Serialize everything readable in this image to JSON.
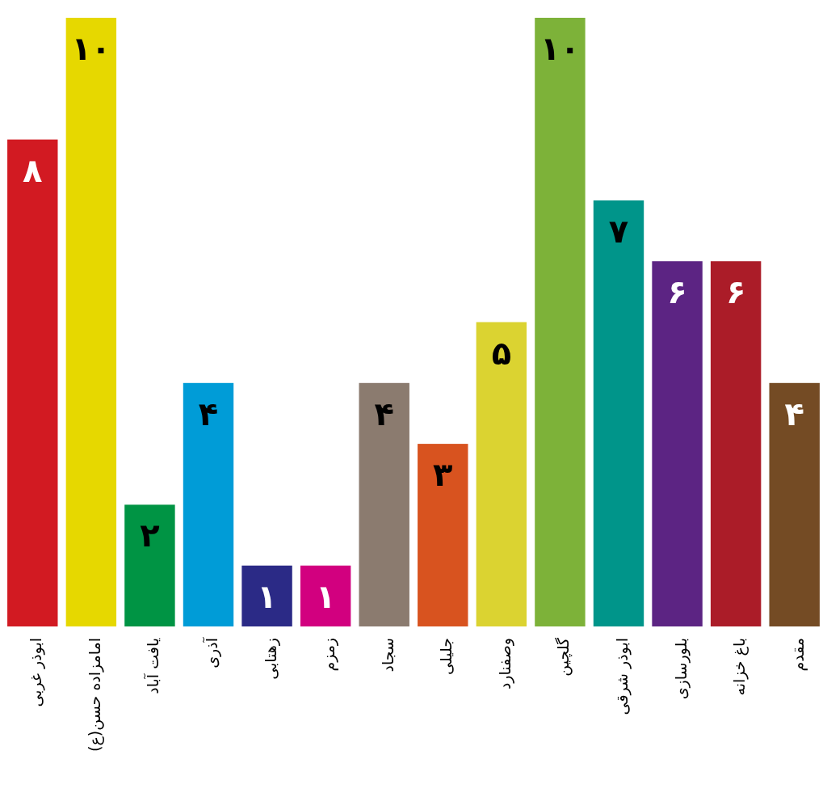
{
  "chart_data": {
    "type": "bar",
    "categories": [
      "ابوذر غربی",
      "امامزاده حسن(ع)",
      "یافت آباد",
      "آذری",
      "زهتابی",
      "زمزم",
      "سجاد",
      "جلیلی",
      "وصفنارد",
      "گلچین",
      "ابوذر شرقی",
      "بلورسازی",
      "باغ خزانه",
      "مقدم"
    ],
    "values": [
      8,
      10,
      2,
      4,
      1,
      1,
      4,
      3,
      5,
      10,
      7,
      6,
      6,
      4
    ],
    "colors": [
      "#d21a22",
      "#e6d800",
      "#009444",
      "#009cd7",
      "#2b2a86",
      "#d2007f",
      "#8b7b6f",
      "#d8531f",
      "#dbd331",
      "#7db239",
      "#00958a",
      "#5c2483",
      "#ab1c28",
      "#744b24"
    ],
    "value_labels": [
      "۸",
      "۱۰",
      "۲",
      "۴",
      "۱",
      "۱",
      "۴",
      "۳",
      "۵",
      "۱۰",
      "۷",
      "۶",
      "۶",
      "۴"
    ],
    "tick_labels": "x"
  }
}
